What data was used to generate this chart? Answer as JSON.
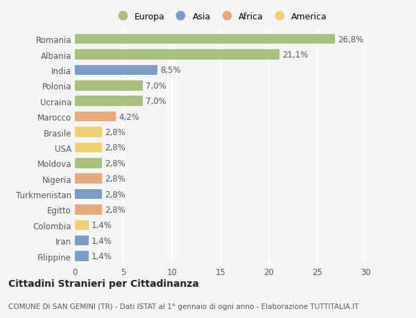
{
  "countries": [
    "Romania",
    "Albania",
    "India",
    "Polonia",
    "Ucraina",
    "Marocco",
    "Brasile",
    "USA",
    "Moldova",
    "Nigeria",
    "Turkmenistan",
    "Egitto",
    "Colombia",
    "Iran",
    "Filippine"
  ],
  "values": [
    26.8,
    21.1,
    8.5,
    7.0,
    7.0,
    4.2,
    2.8,
    2.8,
    2.8,
    2.8,
    2.8,
    2.8,
    1.4,
    1.4,
    1.4
  ],
  "labels": [
    "26,8%",
    "21,1%",
    "8,5%",
    "7,0%",
    "7,0%",
    "4,2%",
    "2,8%",
    "2,8%",
    "2,8%",
    "2,8%",
    "2,8%",
    "2,8%",
    "1,4%",
    "1,4%",
    "1,4%"
  ],
  "continents": [
    "Europa",
    "Europa",
    "Asia",
    "Europa",
    "Europa",
    "Africa",
    "America",
    "America",
    "Europa",
    "Africa",
    "Asia",
    "Africa",
    "America",
    "Asia",
    "Asia"
  ],
  "continent_colors": {
    "Europa": "#a8c07a",
    "Asia": "#7b9ec8",
    "Africa": "#e8a878",
    "America": "#f0d070"
  },
  "legend_order": [
    "Europa",
    "Asia",
    "Africa",
    "America"
  ],
  "xlim": [
    0,
    30
  ],
  "xticks": [
    0,
    5,
    10,
    15,
    20,
    25,
    30
  ],
  "background_color": "#f5f5f5",
  "grid_color": "#ffffff",
  "title": "Cittadini Stranieri per Cittadinanza",
  "subtitle": "COMUNE DI SAN GEMINI (TR) - Dati ISTAT al 1° gennaio di ogni anno - Elaborazione TUTTITALIA.IT",
  "bar_height": 0.65,
  "label_fontsize": 8.5,
  "tick_fontsize": 8.5,
  "title_fontsize": 10,
  "subtitle_fontsize": 7.5
}
